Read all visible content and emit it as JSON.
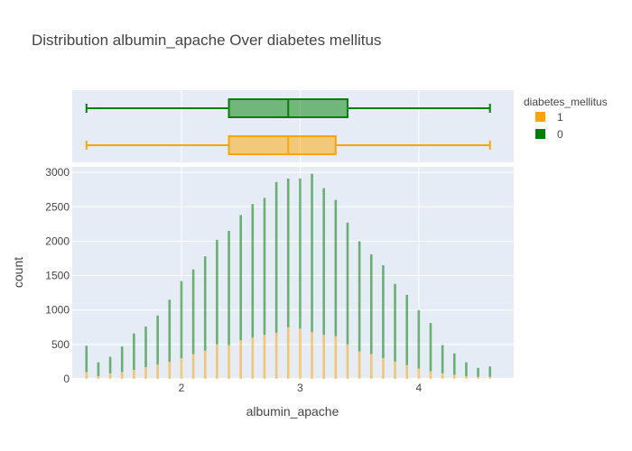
{
  "chart_data": {
    "type": "histogram+box",
    "title": "Distribution albumin_apache Over diabetes mellitus",
    "xlabel": "albumin_apache",
    "ylabel": "count",
    "xlim": [
      1.08,
      4.8
    ],
    "ylim": [
      0,
      3080
    ],
    "x_ticks": [
      2,
      3,
      4
    ],
    "y_ticks": [
      0,
      500,
      1000,
      1500,
      2000,
      2500,
      3000
    ],
    "grid": true,
    "barmode": "stack",
    "legend": {
      "title": "diabetes_mellitus",
      "placement": "top-right",
      "entries": [
        {
          "label": "1",
          "color": "#FFA500"
        },
        {
          "label": "0",
          "color": "#008000"
        }
      ]
    },
    "x": [
      1.2,
      1.3,
      1.4,
      1.5,
      1.6,
      1.7,
      1.8,
      1.9,
      2.0,
      2.1,
      2.2,
      2.3,
      2.4,
      2.5,
      2.6,
      2.7,
      2.8,
      2.9,
      3.0,
      3.1,
      3.2,
      3.3,
      3.4,
      3.5,
      3.6,
      3.7,
      3.8,
      3.9,
      4.0,
      4.1,
      4.2,
      4.3,
      4.4,
      4.5,
      4.6
    ],
    "series": [
      {
        "name": "1",
        "color": "#FFA500",
        "values": [
          100,
          40,
          80,
          100,
          130,
          170,
          210,
          250,
          300,
          360,
          410,
          500,
          490,
          560,
          600,
          640,
          670,
          750,
          730,
          680,
          640,
          620,
          500,
          400,
          360,
          300,
          250,
          200,
          150,
          110,
          80,
          60,
          40,
          30,
          30
        ]
      },
      {
        "name": "0",
        "color": "#008000",
        "values": [
          380,
          200,
          240,
          370,
          530,
          590,
          710,
          900,
          1120,
          1230,
          1370,
          1520,
          1660,
          1820,
          1940,
          1990,
          2190,
          2160,
          2180,
          2300,
          2130,
          1980,
          1770,
          1600,
          1450,
          1350,
          1130,
          1020,
          850,
          700,
          410,
          310,
          200,
          130,
          150
        ]
      }
    ],
    "boxes": [
      {
        "name": "0",
        "color": "#008000",
        "min": 1.2,
        "q1": 2.4,
        "median": 2.9,
        "q3": 3.4,
        "max": 4.6
      },
      {
        "name": "1",
        "color": "#FFA500",
        "min": 1.2,
        "q1": 2.4,
        "median": 2.9,
        "q3": 3.3,
        "max": 4.6
      }
    ]
  }
}
